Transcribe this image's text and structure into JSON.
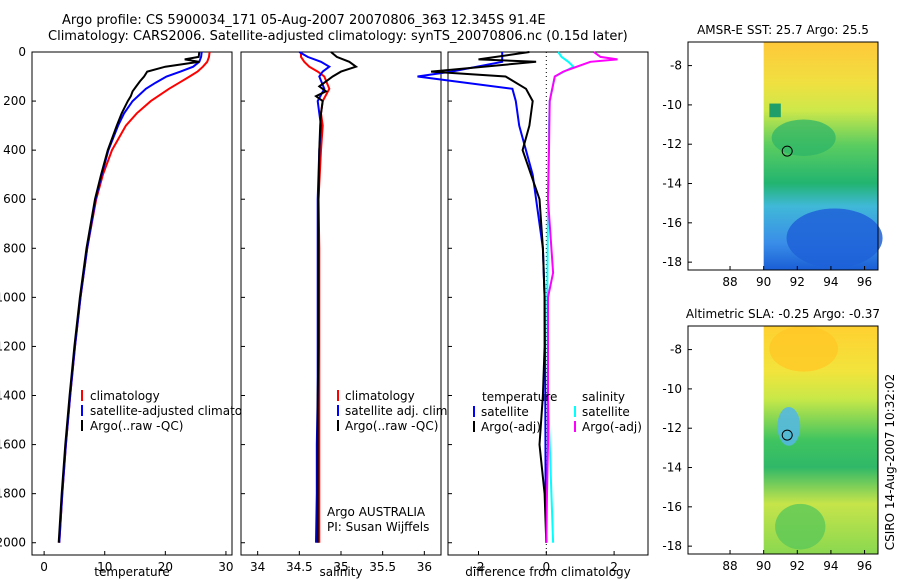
{
  "title_line1": "Argo profile: CS 5900034_171 05-Aug-2007 20070806_363 12.345S 91.4E",
  "title_line2": "Climatology: CARS2006. Satellite-adjusted climatology: synTS_20070806.nc (0.15d later)",
  "side_label": "CSIRO 14-Aug-2007 10:32:02",
  "colors": {
    "climatology": "#ff0000",
    "satellite": "#0000ff",
    "argo": "#000000",
    "satellite_sal": "#00ffff",
    "argo_sal": "#ff00ff"
  },
  "chart_data": [
    {
      "type": "line",
      "id": "temperature",
      "xlabel": "temperature",
      "ylabel": "",
      "xlim": [
        -2,
        31
      ],
      "ylim": [
        2050,
        0
      ],
      "xticks": [
        0,
        10,
        20,
        30
      ],
      "yticks": [
        0,
        200,
        400,
        600,
        800,
        1000,
        1200,
        1400,
        1600,
        1800,
        2000
      ],
      "legend": [
        "climatology",
        "satellite-adjusted climatology",
        "Argo(..raw -QC)"
      ],
      "series": [
        {
          "name": "climatology",
          "color": "#ff0000",
          "depth": [
            0,
            20,
            40,
            60,
            80,
            100,
            125,
            150,
            200,
            250,
            300,
            400,
            500,
            600,
            800,
            1000,
            1200,
            1400,
            1600,
            1800,
            2000
          ],
          "values": [
            27.3,
            27.2,
            26.9,
            26.2,
            25.3,
            24.0,
            22.3,
            20.6,
            17.6,
            15.3,
            13.5,
            11.2,
            9.7,
            8.6,
            7.1,
            6.0,
            5.1,
            4.3,
            3.6,
            3.0,
            2.5
          ]
        },
        {
          "name": "satellite-adjusted climatology",
          "color": "#0000ff",
          "depth": [
            0,
            20,
            40,
            60,
            80,
            100,
            125,
            150,
            200,
            250,
            300,
            400,
            500,
            600,
            800,
            1000,
            1200,
            1400,
            1600,
            1800,
            2000
          ],
          "values": [
            26.0,
            25.9,
            25.6,
            24.6,
            22.5,
            20.2,
            18.4,
            16.8,
            14.6,
            13.2,
            12.2,
            10.6,
            9.5,
            8.5,
            7.1,
            6.0,
            5.1,
            4.3,
            3.6,
            3.0,
            2.5
          ]
        },
        {
          "name": "Argo(..raw -QC)",
          "color": "#000000",
          "depth": [
            0,
            20,
            30,
            40,
            60,
            80,
            100,
            120,
            140,
            160,
            180,
            200,
            250,
            300,
            400,
            500,
            600,
            800,
            1000,
            1200,
            1400,
            1600,
            1800,
            2000
          ],
          "values": [
            25.6,
            25.5,
            23.2,
            25.6,
            20.0,
            17.0,
            16.5,
            15.8,
            15.2,
            14.6,
            14.3,
            13.8,
            12.8,
            12.0,
            10.5,
            9.4,
            8.4,
            7.0,
            5.9,
            5.0,
            4.2,
            3.5,
            2.9,
            2.4
          ]
        }
      ],
      "annotations": []
    },
    {
      "type": "line",
      "id": "salinity",
      "xlabel": "salinity",
      "ylabel": "",
      "xlim": [
        33.8,
        36.2
      ],
      "ylim": [
        2050,
        0
      ],
      "xticks": [
        34,
        34.5,
        35,
        35.5,
        36
      ],
      "yticks": [
        0,
        200,
        400,
        600,
        800,
        1000,
        1200,
        1400,
        1600,
        1800,
        2000
      ],
      "legend": [
        "climatology",
        "satellite adj. clim.",
        "Argo(..raw -QC)"
      ],
      "series": [
        {
          "name": "climatology",
          "color": "#ff0000",
          "depth": [
            0,
            20,
            40,
            60,
            80,
            100,
            150,
            200,
            250,
            300,
            400,
            600,
            800,
            1000,
            1200,
            1400,
            1600,
            1800,
            2000
          ],
          "values": [
            34.52,
            34.52,
            34.56,
            34.62,
            34.72,
            34.8,
            34.86,
            34.78,
            34.76,
            34.78,
            34.76,
            34.73,
            34.74,
            34.74,
            34.74,
            34.74,
            34.74,
            34.74,
            34.74
          ]
        },
        {
          "name": "satellite adj. clim.",
          "color": "#0000ff",
          "depth": [
            0,
            20,
            40,
            60,
            80,
            100,
            150,
            200,
            250,
            300,
            400,
            600,
            800,
            1000,
            1200,
            1400,
            1600,
            1800,
            2000
          ],
          "values": [
            34.5,
            34.6,
            34.76,
            34.86,
            34.78,
            34.74,
            34.8,
            34.72,
            34.74,
            34.76,
            34.74,
            34.72,
            34.72,
            34.72,
            34.72,
            34.72,
            34.71,
            34.71,
            34.7
          ]
        },
        {
          "name": "Argo(..raw -QC)",
          "color": "#000000",
          "depth": [
            0,
            20,
            40,
            60,
            80,
            100,
            120,
            140,
            160,
            180,
            200,
            250,
            300,
            400,
            600,
            800,
            1000,
            1200,
            1400,
            1600,
            1800,
            2000
          ],
          "values": [
            34.88,
            34.95,
            35.1,
            35.18,
            35.0,
            34.9,
            34.82,
            34.74,
            34.82,
            34.7,
            34.78,
            34.76,
            34.75,
            34.74,
            34.73,
            34.73,
            34.73,
            34.73,
            34.72,
            34.72,
            34.72,
            34.72
          ]
        }
      ],
      "annotations": [
        "Argo AUSTRALIA",
        "PI: Susan Wijffels"
      ]
    },
    {
      "type": "line",
      "id": "difference",
      "xlabel": "difference from climatology",
      "ylabel": "",
      "xlim": [
        -2.9,
        3.0
      ],
      "ylim": [
        2050,
        0
      ],
      "xticks": [
        -2,
        0,
        2
      ],
      "yticks": [
        0,
        200,
        400,
        600,
        800,
        1000,
        1200,
        1400,
        1600,
        1800,
        2000
      ],
      "legend_temperature": {
        "heading": "temperature",
        "items": [
          "satellite",
          "Argo(-adj)"
        ]
      },
      "legend_salinity": {
        "heading": "salinity",
        "items": [
          "satellite",
          "Argo(-adj)"
        ]
      },
      "series": [
        {
          "name": "temperature satellite",
          "color": "#0000ff",
          "depth": [
            0,
            40,
            80,
            100,
            150,
            200,
            300,
            500,
            800,
            1000,
            1400,
            1800,
            2000
          ],
          "values": [
            -1.3,
            -1.3,
            -2.8,
            -3.8,
            -1.0,
            -0.9,
            -0.8,
            -0.4,
            -0.1,
            -0.05,
            -0.03,
            -0.02,
            0.0
          ]
        },
        {
          "name": "temperature Argo(-adj)",
          "color": "#000000",
          "depth": [
            0,
            30,
            40,
            80,
            100,
            150,
            200,
            300,
            400,
            600,
            800,
            1000,
            1200,
            1400,
            1600,
            1800,
            2000
          ],
          "values": [
            -0.5,
            -2.0,
            -0.3,
            -3.4,
            -1.2,
            -0.6,
            -0.4,
            -0.5,
            -0.7,
            -0.2,
            -0.1,
            -0.05,
            -0.05,
            -0.1,
            -0.2,
            -0.05,
            0.0
          ]
        },
        {
          "name": "salinity satellite",
          "color": "#00ffff",
          "depth": [
            0,
            20,
            40,
            60,
            100,
            200,
            300,
            600,
            1000,
            1400,
            1800,
            2000
          ],
          "values": [
            0.35,
            0.45,
            0.65,
            0.8,
            0.25,
            0.1,
            0.08,
            0.05,
            0.03,
            0.05,
            0.15,
            0.2
          ]
        },
        {
          "name": "salinity Argo(-adj)",
          "color": "#ff00ff",
          "depth": [
            0,
            20,
            30,
            40,
            60,
            80,
            100,
            200,
            400,
            600,
            800,
            900,
            1000,
            1200,
            1400,
            1600,
            1800,
            2000
          ],
          "values": [
            1.4,
            1.6,
            2.1,
            1.3,
            0.9,
            0.5,
            0.25,
            0.1,
            0.08,
            0.05,
            0.15,
            0.2,
            0.05,
            0.05,
            0.05,
            0.05,
            0.02,
            0.0
          ]
        }
      ],
      "annotations": []
    },
    {
      "type": "heatmap",
      "id": "sst_map",
      "title": "AMSR-E SST: 25.7 Argo: 25.5",
      "xlim": [
        85.5,
        96.8
      ],
      "ylim": [
        -18.4,
        -6.8
      ],
      "xticks": [
        88,
        90,
        92,
        94,
        96
      ],
      "yticks": [
        -8,
        -10,
        -12,
        -14,
        -16,
        -18
      ],
      "data_xmin": 90,
      "marker": {
        "lon": 91.4,
        "lat": -12.35
      }
    },
    {
      "type": "heatmap",
      "id": "sla_map",
      "title": "Altimetric SLA: -0.25 Argo: -0.37",
      "xlim": [
        85.5,
        96.8
      ],
      "ylim": [
        -18.4,
        -6.8
      ],
      "xticks": [
        88,
        90,
        92,
        94,
        96
      ],
      "yticks": [
        -8,
        -10,
        -12,
        -14,
        -16,
        -18
      ],
      "data_xmin": 90,
      "marker": {
        "lon": 91.4,
        "lat": -12.35
      }
    }
  ]
}
